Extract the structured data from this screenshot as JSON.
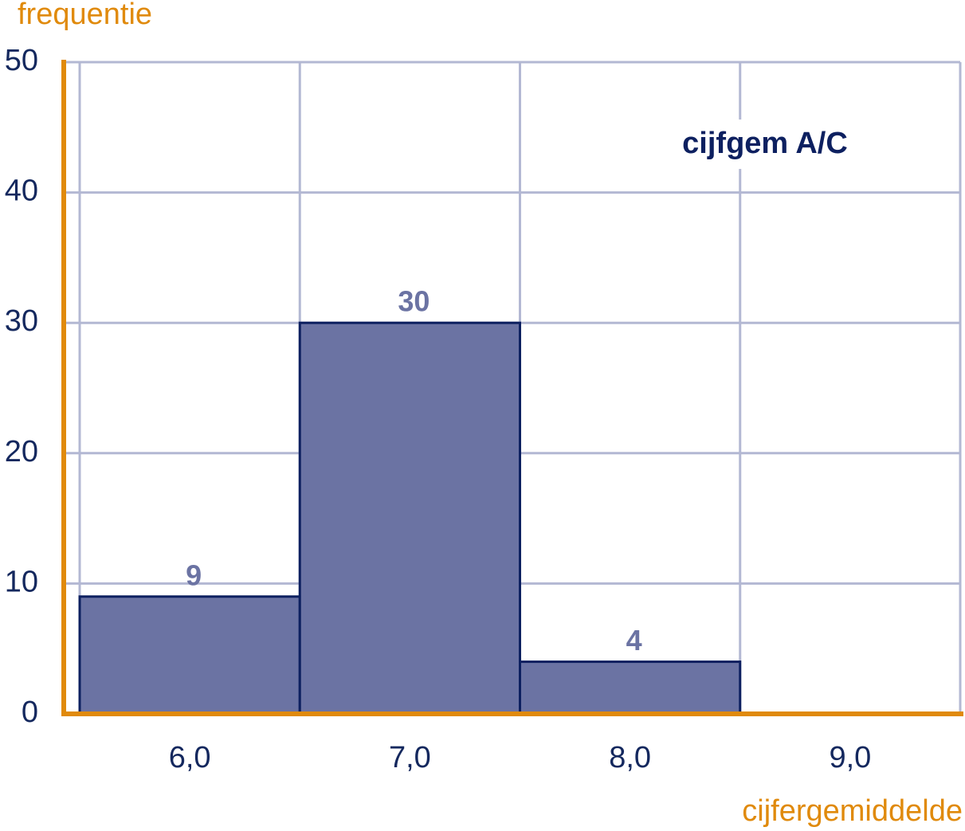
{
  "chart_data": {
    "type": "bar",
    "title": "cijfgem A/C",
    "x_label": "cijfergemiddelde",
    "y_label": "frequentie",
    "categories": [
      "6,0",
      "7,0",
      "8,0",
      "9,0"
    ],
    "values": [
      9,
      30,
      4,
      null
    ],
    "color": "#6b73a3",
    "edge_color": "#0d2060",
    "ylim": [
      0,
      50
    ],
    "yticks": [
      0,
      10,
      20,
      30,
      40,
      50
    ],
    "grid": true
  }
}
